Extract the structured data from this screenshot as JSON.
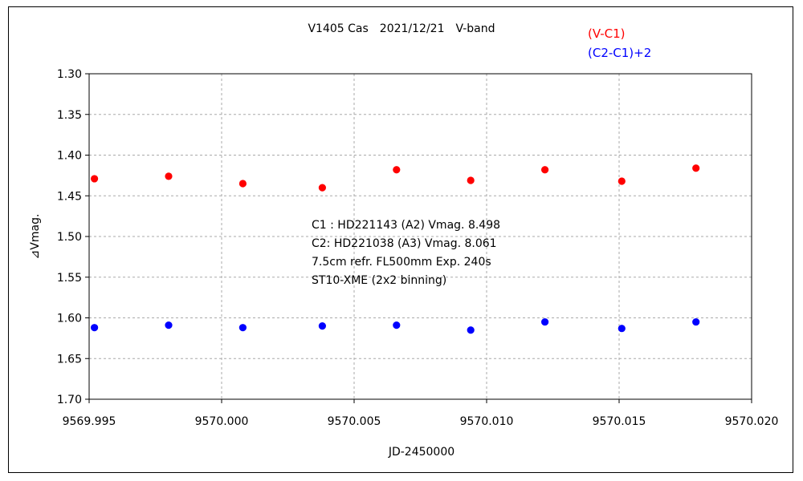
{
  "chart_data": {
    "type": "scatter",
    "title": "V1405 Cas　2021/12/21　V-band",
    "xlabel": "JD-2450000",
    "ylabel": "⊿Vmag.",
    "xlim": [
      9569.995,
      9570.02
    ],
    "ylim": [
      1.7,
      1.3
    ],
    "y_inverted": true,
    "x_ticks": [
      "9569.995",
      "9570.000",
      "9570.005",
      "9570.010",
      "9570.015",
      "9570.020"
    ],
    "y_ticks": [
      "1.30",
      "1.35",
      "1.40",
      "1.45",
      "1.50",
      "1.55",
      "1.60",
      "1.65",
      "1.70"
    ],
    "grid": true,
    "legend_placement": "top-right",
    "series": [
      {
        "name": "(V-C1)",
        "color": "#ff0000",
        "points": [
          [
            9569.9952,
            1.429
          ],
          [
            9569.998,
            1.426
          ],
          [
            9570.0008,
            1.435
          ],
          [
            9570.0038,
            1.44
          ],
          [
            9570.0066,
            1.418
          ],
          [
            9570.0094,
            1.431
          ],
          [
            9570.0122,
            1.418
          ],
          [
            9570.0151,
            1.432
          ],
          [
            9570.0179,
            1.416
          ]
        ]
      },
      {
        "name": "(C2-C1)+2",
        "color": "#0000ff",
        "points": [
          [
            9569.9952,
            1.612
          ],
          [
            9569.998,
            1.609
          ],
          [
            9570.0008,
            1.612
          ],
          [
            9570.0038,
            1.61
          ],
          [
            9570.0066,
            1.609
          ],
          [
            9570.0094,
            1.615
          ],
          [
            9570.0122,
            1.605
          ],
          [
            9570.0151,
            1.613
          ],
          [
            9570.0179,
            1.605
          ]
        ]
      }
    ],
    "annotations": [
      "C1 : HD221143 (A2) Vmag. 8.498",
      "C2: HD221038 (A3) Vmag. 8.061",
      "7.5cm refr. FL500mm Exp. 240s",
      "ST10-XME (2x2 binning)"
    ]
  }
}
